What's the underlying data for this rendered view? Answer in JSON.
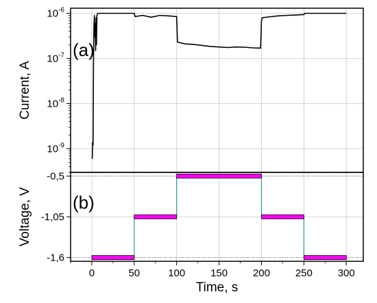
{
  "chart_data": [
    {
      "panel_label": "(a)",
      "type": "line",
      "ylabel": "Current, A",
      "yscale": "log",
      "ylim": [
        3e-10,
        1.3e-06
      ],
      "xlim": [
        -25,
        320
      ],
      "grid": true,
      "y_tick_values": [
        1e-09,
        1e-08,
        1e-07,
        1e-06
      ],
      "y_tick_labels": [
        {
          "base": "10",
          "exp": "-9"
        },
        {
          "base": "10",
          "exp": "-8"
        },
        {
          "base": "10",
          "exp": "-7"
        },
        {
          "base": "10",
          "exp": "-6"
        }
      ],
      "series": [
        {
          "color": "#000000",
          "x": [
            0.5,
            1,
            1.5,
            2,
            2.5,
            3,
            3.5,
            4,
            4.5,
            5,
            5.5,
            6,
            7,
            8,
            50,
            51,
            60,
            70,
            80,
            90,
            100,
            101,
            110,
            120,
            130,
            140,
            150,
            160,
            170,
            180,
            190,
            199,
            200,
            201,
            210,
            220,
            230,
            240,
            250,
            251,
            260,
            280,
            300
          ],
          "y": [
            6e-10,
            1.4e-09,
            1.2e-09,
            8e-08,
            5e-07,
            9e-07,
            3e-07,
            6e-07,
            1.5e-07,
            8e-07,
            2e-07,
            9e-07,
            1e-06,
            1e-06,
            1e-06,
            8.5e-07,
            9e-07,
            8.2e-07,
            9e-07,
            8.8e-07,
            8.5e-07,
            2.3e-07,
            2.1e-07,
            2.05e-07,
            1.95e-07,
            1.85e-07,
            1.8e-07,
            1.75e-07,
            1.8e-07,
            1.78e-07,
            1.72e-07,
            1.7e-07,
            7e-07,
            8e-07,
            8.4e-07,
            8.8e-07,
            9e-07,
            9.2e-07,
            9.4e-07,
            1e-06,
            1e-06,
            1e-06,
            1e-06
          ]
        }
      ]
    },
    {
      "panel_label": "(b)",
      "type": "step",
      "xlabel": "Time, s",
      "ylabel": "Voltage, V",
      "ylim": [
        -1.65,
        -0.45
      ],
      "xlim": [
        -25,
        320
      ],
      "grid": true,
      "y_tick_values": [
        -1.6,
        -1.05,
        -0.5
      ],
      "y_tick_labels": [
        "-1,6",
        "-1,05",
        "-0,5"
      ],
      "x_tick_values": [
        0,
        50,
        100,
        150,
        200,
        250,
        300
      ],
      "x_tick_labels": [
        "0",
        "50",
        "100",
        "150",
        "200",
        "250",
        "300"
      ],
      "segments": [
        {
          "x0": 0,
          "x1": 50,
          "v": -1.6
        },
        {
          "x0": 50,
          "x1": 100,
          "v": -1.05
        },
        {
          "x0": 100,
          "x1": 200,
          "v": -0.5
        },
        {
          "x0": 200,
          "x1": 250,
          "v": -1.05
        },
        {
          "x0": 250,
          "x1": 300,
          "v": -1.6
        }
      ],
      "bar_color": "#ff00ff",
      "step_line_color": "#2e9a8a",
      "reference_lines": [
        -0.5,
        -1.6
      ]
    }
  ]
}
